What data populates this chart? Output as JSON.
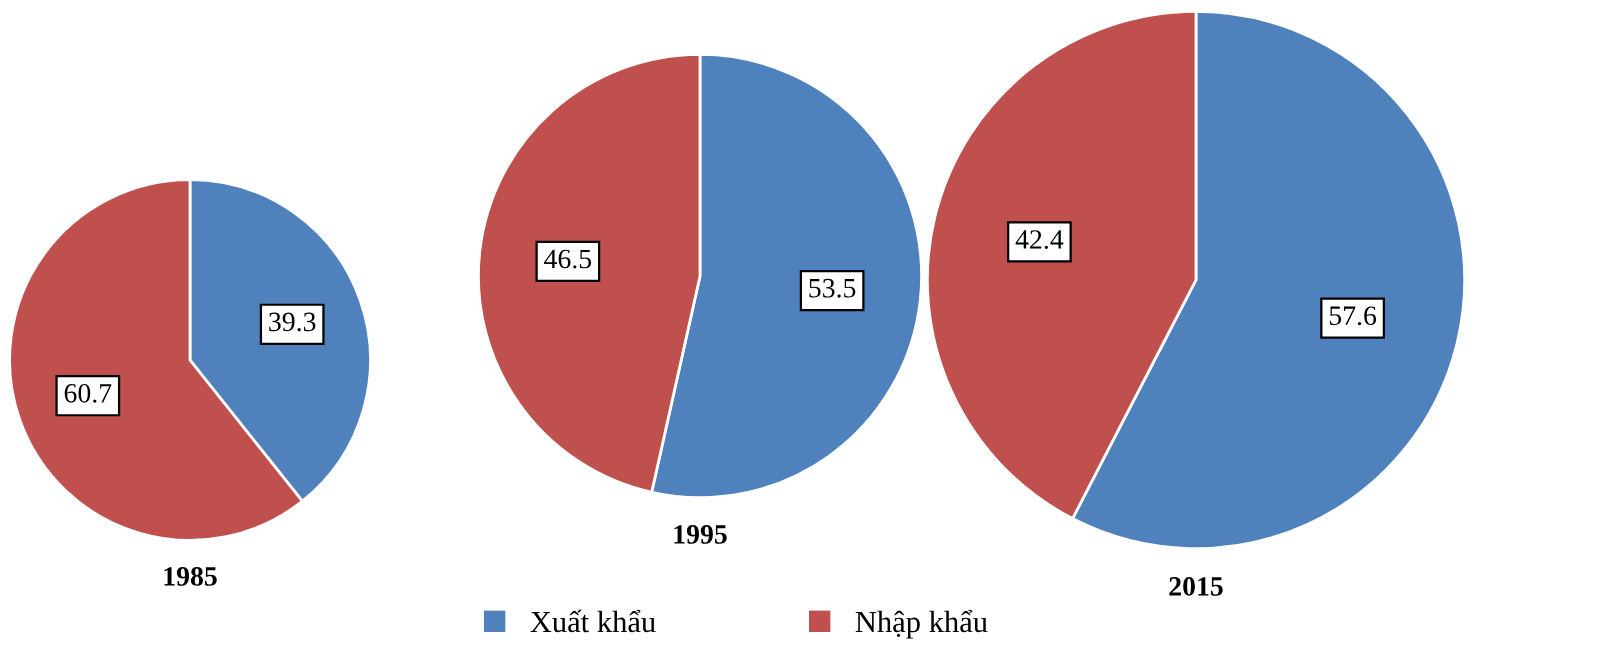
{
  "chart_data": [
    {
      "type": "pie",
      "title": "1985",
      "categories": [
        "Xuất khẩu",
        "Nhập khẩu"
      ],
      "values": [
        39.3,
        60.7
      ],
      "colors": [
        "#4f81bd",
        "#c0504d"
      ],
      "data_labels": true,
      "legend": "bottom"
    },
    {
      "type": "pie",
      "title": "1995",
      "categories": [
        null,
        null
      ],
      "values": [
        53.5,
        46.5
      ],
      "colors": [
        "#4f81bd",
        "#c0504d"
      ],
      "data_labels": true
    },
    {
      "type": "pie",
      "title": "2015",
      "categories": [
        null,
        null
      ],
      "values": [
        57.6,
        42.4
      ],
      "colors": [
        "#4f81bd",
        "#c0504d"
      ],
      "data_labels": true
    }
  ]
}
